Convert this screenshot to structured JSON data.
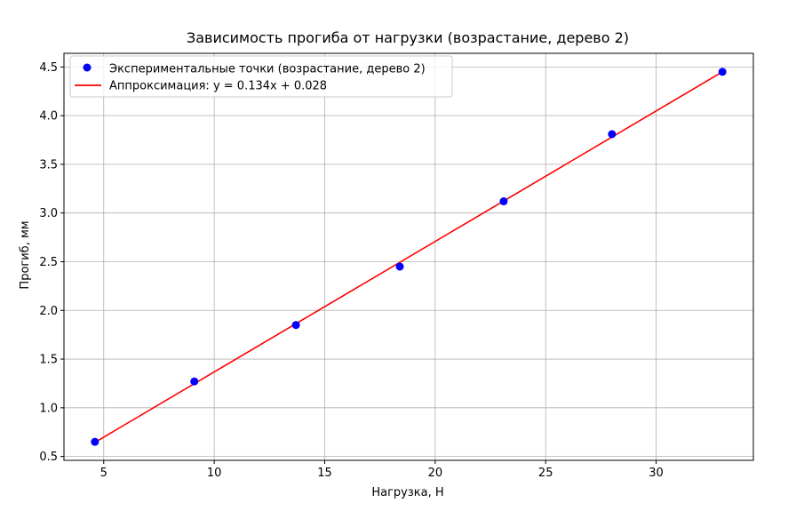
{
  "chart_data": {
    "type": "scatter",
    "title": "Зависимость прогиба от нагрузки (возрастание, дерево 2)",
    "xlabel": "Нагрузка, Н",
    "ylabel": "Прогиб, мм",
    "xlim": [
      3.2,
      34.4
    ],
    "ylim": [
      0.46,
      4.64
    ],
    "xticks": [
      5,
      10,
      15,
      20,
      25,
      30
    ],
    "yticks": [
      0.5,
      1.0,
      1.5,
      2.0,
      2.5,
      3.0,
      3.5,
      4.0,
      4.5
    ],
    "xtick_labels": [
      "5",
      "10",
      "15",
      "20",
      "25",
      "30"
    ],
    "ytick_labels": [
      "0.5",
      "1.0",
      "1.5",
      "2.0",
      "2.5",
      "3.0",
      "3.5",
      "4.0",
      "4.5"
    ],
    "grid": true,
    "legend_position": "top-left",
    "series": [
      {
        "name": "Экспериментальные точки (возрастание, дерево 2)",
        "kind": "scatter",
        "color": "#0000ff",
        "points": [
          {
            "x": 4.6,
            "y": 0.65
          },
          {
            "x": 9.1,
            "y": 1.27
          },
          {
            "x": 13.7,
            "y": 1.85
          },
          {
            "x": 18.4,
            "y": 2.45
          },
          {
            "x": 23.1,
            "y": 3.12
          },
          {
            "x": 28.0,
            "y": 3.81
          },
          {
            "x": 33.0,
            "y": 4.45
          }
        ]
      },
      {
        "name": "Аппроксимация: y = 0.134x + 0.028",
        "kind": "line",
        "color": "#ff0000",
        "slope": 0.134,
        "intercept": 0.028,
        "x_range": [
          4.6,
          33.0
        ]
      }
    ]
  }
}
